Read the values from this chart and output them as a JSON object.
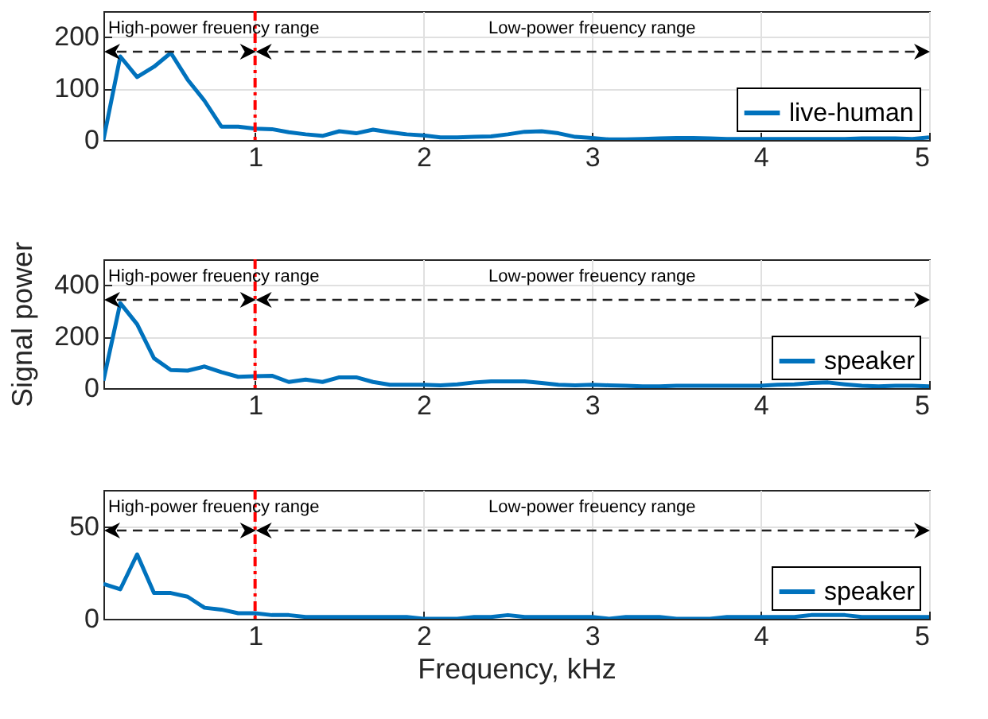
{
  "chart_data": [
    {
      "type": "line",
      "x": [
        0.1,
        0.2,
        0.3,
        0.4,
        0.5,
        0.6,
        0.7,
        0.8,
        0.9,
        1.0,
        1.1,
        1.2,
        1.3,
        1.4,
        1.5,
        1.6,
        1.7,
        1.8,
        1.9,
        2.0,
        2.1,
        2.2,
        2.3,
        2.4,
        2.5,
        2.6,
        2.7,
        2.8,
        2.9,
        3.0,
        3.1,
        3.2,
        3.3,
        3.4,
        3.5,
        3.6,
        3.7,
        3.8,
        3.9,
        4.0,
        4.1,
        4.2,
        4.3,
        4.4,
        4.5,
        4.6,
        4.7,
        4.8,
        4.9,
        5.0
      ],
      "series": [
        {
          "name": "live-human",
          "color": "#0072bd",
          "values": [
            0,
            162,
            122,
            142,
            169,
            117,
            76,
            26,
            26,
            22,
            21,
            15,
            11,
            8,
            17,
            13,
            20,
            15,
            11,
            9,
            5,
            5,
            6,
            7,
            11,
            16,
            17,
            13,
            6,
            4,
            1,
            1,
            2,
            3,
            4,
            4,
            3,
            2,
            2,
            2,
            2,
            2,
            2,
            2,
            2,
            3,
            3,
            3,
            2,
            5
          ]
        }
      ],
      "xlim": [
        0.1,
        5
      ],
      "xticks": [
        1,
        2,
        3,
        4,
        5
      ],
      "ylim": [
        0,
        250
      ],
      "yticks": [
        0,
        100,
        200
      ],
      "grid": true,
      "legend": "bottom right",
      "ref_lines": [
        {
          "axis": "x",
          "value": 1,
          "color": "#ff0000",
          "line_style": "dashed"
        }
      ],
      "annotations": [
        "High-power freuency range",
        "Low-power freuency range"
      ]
    },
    {
      "type": "line",
      "x": [
        0.1,
        0.2,
        0.3,
        0.4,
        0.5,
        0.6,
        0.7,
        0.8,
        0.9,
        1.0,
        1.1,
        1.2,
        1.3,
        1.4,
        1.5,
        1.6,
        1.7,
        1.8,
        1.9,
        2.0,
        2.1,
        2.2,
        2.3,
        2.4,
        2.5,
        2.6,
        2.7,
        2.8,
        2.9,
        3.0,
        3.1,
        3.2,
        3.3,
        3.4,
        3.5,
        3.6,
        3.7,
        3.8,
        3.9,
        4.0,
        4.1,
        4.2,
        4.3,
        4.4,
        4.5,
        4.6,
        4.7,
        4.8,
        4.9,
        5.0
      ],
      "series": [
        {
          "name": "speaker",
          "color": "#0072bd",
          "values": [
            29,
            330,
            248,
            116,
            70,
            68,
            84,
            62,
            44,
            46,
            48,
            24,
            33,
            24,
            42,
            42,
            24,
            13,
            13,
            13,
            11,
            15,
            22,
            26,
            26,
            26,
            20,
            13,
            11,
            13,
            11,
            9,
            7,
            7,
            9,
            9,
            9,
            9,
            9,
            9,
            13,
            15,
            20,
            22,
            15,
            9,
            7,
            9,
            9,
            7
          ]
        }
      ],
      "xlim": [
        0.1,
        5
      ],
      "xticks": [
        1,
        2,
        3,
        4,
        5
      ],
      "ylim": [
        0,
        500
      ],
      "yticks": [
        0,
        200,
        400
      ],
      "ylabel": "Signal power",
      "grid": true,
      "legend": "bottom right",
      "ref_lines": [
        {
          "axis": "x",
          "value": 1,
          "color": "#ff0000",
          "line_style": "dashed"
        }
      ],
      "annotations": [
        "High-power freuency range",
        "Low-power freuency range"
      ]
    },
    {
      "type": "line",
      "x": [
        0.1,
        0.2,
        0.3,
        0.4,
        0.5,
        0.6,
        0.7,
        0.8,
        0.9,
        1.0,
        1.1,
        1.2,
        1.3,
        1.4,
        1.5,
        1.6,
        1.7,
        1.8,
        1.9,
        2.0,
        2.1,
        2.2,
        2.3,
        2.4,
        2.5,
        2.6,
        2.7,
        2.8,
        2.9,
        3.0,
        3.1,
        3.2,
        3.3,
        3.4,
        3.5,
        3.6,
        3.7,
        3.8,
        3.9,
        4.0,
        4.1,
        4.2,
        4.3,
        4.4,
        4.5,
        4.6,
        4.7,
        4.8,
        4.9,
        5.0
      ],
      "series": [
        {
          "name": "speaker",
          "color": "#0072bd",
          "values": [
            19,
            16,
            35,
            14,
            14,
            12,
            6,
            5,
            3,
            3,
            2,
            2,
            1,
            1,
            1,
            1,
            1,
            1,
            1,
            0,
            0,
            0,
            1,
            1,
            2,
            1,
            1,
            1,
            1,
            1,
            0,
            1,
            1,
            1,
            0,
            0,
            0,
            1,
            1,
            1,
            1,
            1,
            2,
            2,
            2,
            1,
            1,
            1,
            1,
            1
          ]
        }
      ],
      "xlim": [
        0.1,
        5
      ],
      "xticks": [
        1,
        2,
        3,
        4,
        5
      ],
      "ylim": [
        0,
        70
      ],
      "yticks": [
        0,
        50
      ],
      "xlabel": "Frequency, kHz",
      "grid": true,
      "legend": "bottom right",
      "ref_lines": [
        {
          "axis": "x",
          "value": 1,
          "color": "#ff0000",
          "line_style": "dashed"
        }
      ],
      "annotations": [
        "High-power freuency range",
        "Low-power freuency range"
      ]
    }
  ]
}
